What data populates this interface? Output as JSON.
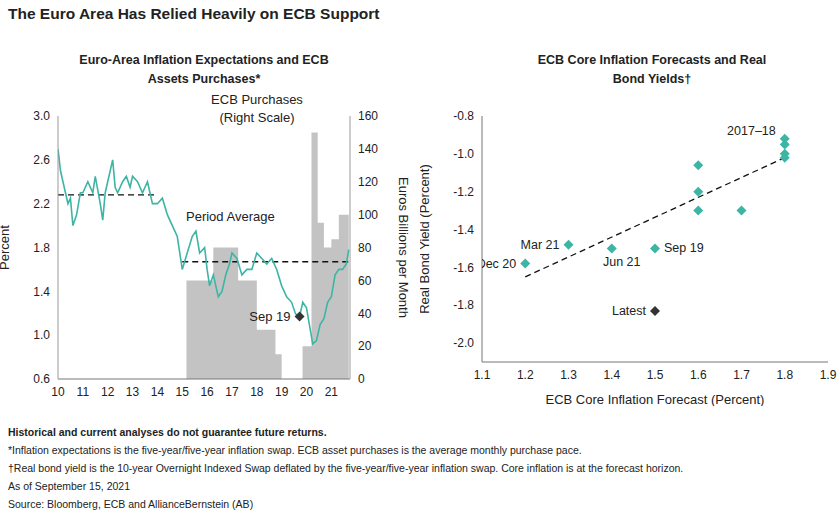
{
  "title": "The Euro Area Has Relied Heavily on ECB Support",
  "chart_data": [
    {
      "type": "bar_line",
      "title": "Euro-Area Inflation Expectations and ECB Assets Purchases*",
      "y_label": "Percent",
      "y2_label": "Euros Billions per Month",
      "xlim": [
        2010,
        2021.75
      ],
      "xticks": [
        {
          "value": 2010,
          "label": "10"
        },
        {
          "value": 2011,
          "label": "11"
        },
        {
          "value": 2012,
          "label": "12"
        },
        {
          "value": 2013,
          "label": "13"
        },
        {
          "value": 2014,
          "label": "14"
        },
        {
          "value": 2015,
          "label": "15"
        },
        {
          "value": 2016,
          "label": "16"
        },
        {
          "value": 2017,
          "label": "17"
        },
        {
          "value": 2018,
          "label": "18"
        },
        {
          "value": 2019,
          "label": "19"
        },
        {
          "value": 2020,
          "label": "20"
        },
        {
          "value": 2021,
          "label": "21"
        }
      ],
      "ylim": [
        0.6,
        3
      ],
      "yticks": [
        0.6,
        {
          "value": 1,
          "label": "1.0"
        },
        1.4,
        1.8,
        2.2,
        2.6,
        {
          "value": 3,
          "label": "3.0"
        }
      ],
      "y2lim": [
        0,
        160
      ],
      "y2ticks": [
        0,
        20,
        40,
        60,
        80,
        100,
        120,
        140,
        160
      ],
      "series": [
        {
          "type": "bar",
          "axis": "y2",
          "color": "#c3c3c3",
          "x": [
            2015.17,
            2016.25,
            2017.25,
            2018.0,
            2018.75,
            2019.0,
            2019.84,
            2020.2,
            2020.45,
            2020.7,
            2021.0,
            2021.3,
            2021.7
          ],
          "values": [
            60,
            80,
            60,
            30,
            15,
            0,
            20,
            150,
            95,
            80,
            85,
            100,
            100
          ]
        },
        {
          "type": "line",
          "color": "#3db5a5",
          "x": [
            2010.0,
            2010.1,
            2010.25,
            2010.4,
            2010.5,
            2010.6,
            2010.75,
            2010.9,
            2011.0,
            2011.2,
            2011.4,
            2011.5,
            2011.7,
            2011.8,
            2011.9,
            2012.0,
            2012.2,
            2012.3,
            2012.4,
            2012.6,
            2012.75,
            2012.9,
            2013.0,
            2013.2,
            2013.4,
            2013.6,
            2013.8,
            2014.0,
            2014.2,
            2014.4,
            2014.6,
            2014.8,
            2015.0,
            2015.2,
            2015.4,
            2015.55,
            2015.7,
            2015.9,
            2016.0,
            2016.1,
            2016.25,
            2016.45,
            2016.6,
            2016.75,
            2016.9,
            2017.0,
            2017.2,
            2017.4,
            2017.6,
            2017.8,
            2018.0,
            2018.2,
            2018.4,
            2018.6,
            2018.8,
            2019.0,
            2019.2,
            2019.4,
            2019.55,
            2019.7,
            2019.85,
            2020.0,
            2020.15,
            2020.25,
            2020.4,
            2020.55,
            2020.7,
            2020.85,
            2021.0,
            2021.15,
            2021.3,
            2021.45,
            2021.6,
            2021.7
          ],
          "values": [
            2.7,
            2.5,
            2.35,
            2.2,
            2.25,
            2.0,
            2.1,
            2.3,
            2.3,
            2.4,
            2.3,
            2.45,
            2.2,
            2.05,
            2.3,
            2.4,
            2.6,
            2.35,
            2.3,
            2.4,
            2.45,
            2.35,
            2.45,
            2.4,
            2.3,
            2.4,
            2.2,
            2.2,
            2.25,
            2.1,
            2.0,
            1.9,
            1.6,
            1.75,
            1.9,
            1.95,
            1.75,
            1.8,
            1.6,
            1.45,
            1.55,
            1.35,
            1.4,
            1.55,
            1.65,
            1.75,
            1.7,
            1.55,
            1.6,
            1.6,
            1.75,
            1.7,
            1.65,
            1.7,
            1.6,
            1.45,
            1.35,
            1.3,
            1.2,
            1.15,
            1.3,
            1.25,
            1.05,
            0.92,
            0.95,
            1.1,
            1.15,
            1.3,
            1.35,
            1.55,
            1.6,
            1.6,
            1.65,
            1.78
          ]
        }
      ],
      "bar_label": [
        "ECB Purchases",
        "(Right Scale)"
      ],
      "period_average": {
        "label": "Period Average",
        "line_style": "dashed",
        "color": "#111111",
        "segments": [
          {
            "x": [
              2010,
              2014
            ],
            "value": 2.28
          },
          {
            "x": [
              2015,
              2021.75
            ],
            "value": 1.67
          }
        ]
      },
      "marker_point": {
        "label": "Sep 19",
        "x": 2019.72,
        "y": 1.17,
        "color": "#333333",
        "marker": "diamond"
      }
    },
    {
      "type": "scatter",
      "title": "ECB Core Inflation Forecasts and Real Bond Yields†",
      "x_label": "ECB Core Inflation Forecast (Percent)",
      "y_label": "Real Bond Yield (Percent)",
      "xlim": [
        1.1,
        1.9
      ],
      "xticks": [
        1.1,
        1.2,
        1.3,
        1.4,
        1.5,
        1.6,
        1.7,
        1.8,
        1.9
      ],
      "ylim": [
        -2.1,
        -0.8
      ],
      "yticks": [
        {
          "value": -2,
          "label": "-2.0"
        },
        -1.8,
        -1.6,
        -1.4,
        -1.2,
        {
          "value": -1,
          "label": "-1.0"
        },
        -0.8
      ],
      "marker": "diamond",
      "x": [
        1.8,
        1.8,
        1.8,
        1.8,
        1.6,
        1.6,
        1.6,
        1.7,
        1.2,
        1.3,
        1.4,
        1.5,
        1.5
      ],
      "values": [
        -0.92,
        -0.95,
        -1.0,
        -1.02,
        -1.06,
        -1.2,
        -1.3,
        -1.3,
        -1.58,
        -1.48,
        -1.5,
        -1.5,
        -1.83
      ],
      "point_labels": [
        "2017–18",
        null,
        null,
        null,
        null,
        null,
        null,
        null,
        "Dec 20",
        "Mar 21",
        "Jun 21",
        "Sep 19",
        "Latest"
      ],
      "colors": [
        "#3db5a5",
        "#3db5a5",
        "#3db5a5",
        "#3db5a5",
        "#3db5a5",
        "#3db5a5",
        "#3db5a5",
        "#3db5a5",
        "#3db5a5",
        "#3db5a5",
        "#3db5a5",
        "#3db5a5",
        "#333333"
      ],
      "trend_line": {
        "x": [
          1.2,
          1.8
        ],
        "y": [
          -1.65,
          -1.02
        ],
        "line_style": "dashed",
        "color": "#111111"
      }
    }
  ],
  "notes": {
    "disclaimer": "Historical and current analyses do not guarantee future returns.",
    "lines": [
      "*Inflation expectations is the five-year/five-year inflation swap. ECB asset purchases is the average monthly purchase pace.",
      "†Real bond yield is the 10-year Overnight Indexed Swap deflated by the five-year/five-year inflation swap. Core inflation is at the forecast horizon.",
      "As of September 15, 2021",
      "Source: Bloomberg, ECB and AllianceBernstein (AB)"
    ]
  }
}
